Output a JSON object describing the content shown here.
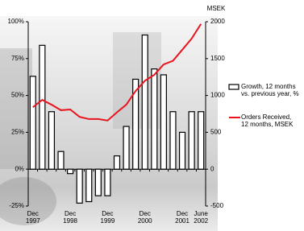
{
  "chart_data": {
    "type": "bar",
    "y2_label": "MSEK",
    "categories": [
      "Dec 1997",
      null,
      null,
      null,
      "Dec 1998",
      null,
      null,
      null,
      "Dec 1999",
      null,
      null,
      null,
      "Dec 2000",
      null,
      null,
      null,
      "Dec 2001",
      null,
      "June 2002"
    ],
    "series": [
      {
        "name": "Growth, 12 months vs. previous year, %",
        "type": "bar",
        "color": "#ffffff",
        "axis": "y",
        "values": [
          63,
          84,
          39,
          12,
          -3,
          -23,
          -22,
          -18,
          -18,
          9,
          29,
          61,
          91,
          68,
          64,
          39,
          25,
          39,
          39
        ]
      },
      {
        "name": "Orders Received, 12 months, MSEK",
        "type": "line",
        "color": "#e8141e",
        "axis": "y2",
        "values": [
          840,
          940,
          875,
          800,
          810,
          710,
          680,
          680,
          660,
          770,
          875,
          1060,
          1200,
          1280,
          1420,
          1470,
          1620,
          1770,
          1970
        ]
      }
    ],
    "ylim": [
      -25,
      100
    ],
    "yticks": [
      {
        "value": -25,
        "label": "-25%"
      },
      {
        "value": 0,
        "label": "0%"
      },
      {
        "value": 25,
        "label": "25%"
      },
      {
        "value": 50,
        "label": "50%"
      },
      {
        "value": 75,
        "label": "75%"
      },
      {
        "value": 100,
        "label": "100%"
      }
    ],
    "y2lim": [
      -500,
      2000
    ],
    "y2ticks": [
      -500,
      0,
      500,
      1000,
      1500,
      2000
    ]
  }
}
